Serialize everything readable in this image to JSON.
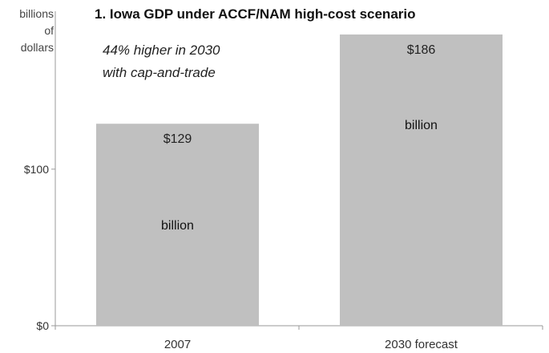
{
  "chart_data": {
    "type": "bar",
    "title": "1. Iowa GDP under ACCF/NAM high-cost scenario",
    "ylabel_lines": [
      "billions",
      "of",
      "dollars"
    ],
    "xlabel": "",
    "categories": [
      "2007",
      "2030 forecast"
    ],
    "values": [
      129,
      186
    ],
    "ylim": [
      0,
      186
    ],
    "yticks": [
      {
        "value": 0,
        "label": "$0"
      },
      {
        "value": 100,
        "label": "$100"
      }
    ],
    "data_labels": [
      "$129",
      "$186"
    ],
    "unit_labels": [
      "billion",
      "billion"
    ],
    "annotation": [
      "44% higher in 2030",
      "with cap-and-trade"
    ],
    "bar_color": "#c0c0c0",
    "grid": false
  }
}
